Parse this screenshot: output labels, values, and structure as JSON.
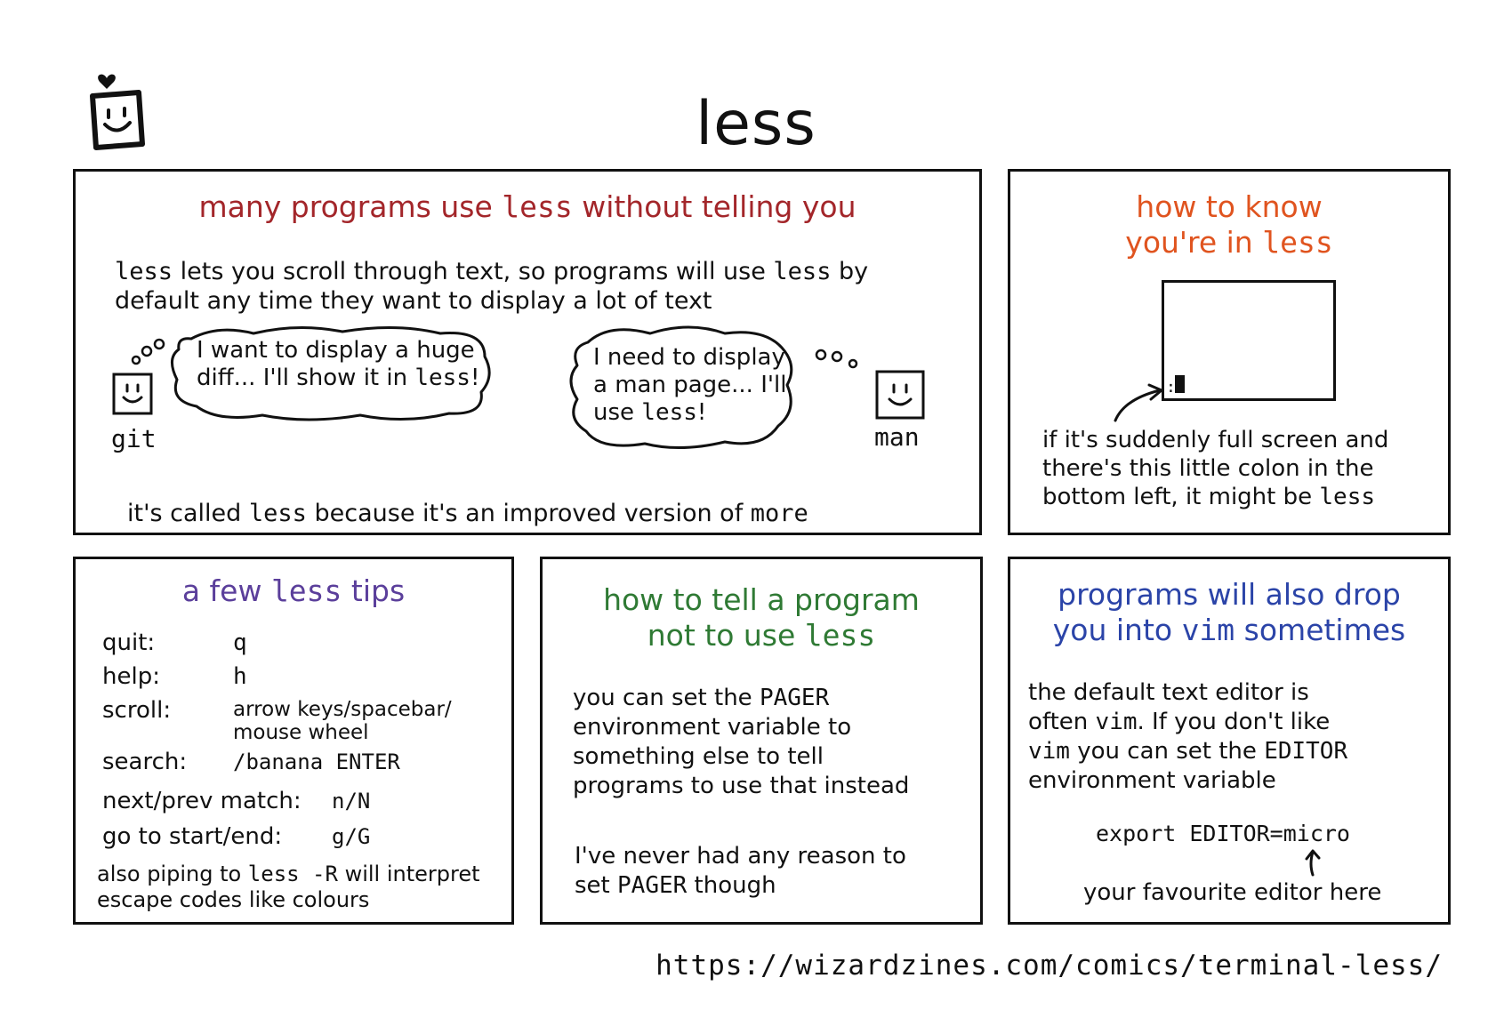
{
  "title": "less",
  "panel1": {
    "heading": {
      "part1": "many programs use ",
      "code": "less",
      "part2": " without telling you"
    },
    "line1": {
      "code1": "less",
      "text1": " lets you scroll through text, so programs will use ",
      "code2": "less",
      "text2": " by"
    },
    "line2": "default any time they want to display a lot of text",
    "git_bubble": {
      "line1": "I want to display a huge",
      "line2a": "diff... I'll show it in ",
      "line2code": "less",
      "line2b": "!"
    },
    "git_label": "git",
    "man_bubble": {
      "line1": "I need to display",
      "line2": "a man page... I'll",
      "line3a": "use ",
      "line3code": "less",
      "line3b": "!"
    },
    "man_label": "man",
    "footer": {
      "t1": "it's called ",
      "code1": "less",
      "t2": " because it's an improved version of ",
      "code2": "more"
    }
  },
  "panel2": {
    "heading1": "how to know",
    "heading2a": "you're in ",
    "heading2code": "less",
    "colon_prompt": ":",
    "line1": "if it's suddenly full screen and",
    "line2": "there's this little colon in the",
    "line3a": "bottom left, it might be ",
    "line3code": "less"
  },
  "panel3": {
    "heading": {
      "t1": "a few ",
      "code": "less",
      "t2": " tips"
    },
    "tips": [
      {
        "key": "quit:",
        "value": "q"
      },
      {
        "key": "help:",
        "value": "h"
      },
      {
        "key": "scroll:",
        "value": "arrow keys/spacebar/",
        "value2": "mouse wheel"
      },
      {
        "key": "search:",
        "value": "/banana ENTER"
      },
      {
        "key": "next/prev match:",
        "value": "n/N"
      },
      {
        "key": "go to start/end:",
        "value": "g/G"
      }
    ],
    "note": {
      "t1": "also piping to ",
      "code": "less -R",
      "t2": " will interpret",
      "line2": "escape codes like colours"
    }
  },
  "panel4": {
    "heading1": "how to tell a program",
    "heading2a": "not to use ",
    "heading2code": "less",
    "p1": {
      "l1a": "you can set the ",
      "l1code": "PAGER",
      "l2": "environment variable to",
      "l3": "something else to tell",
      "l4": "programs to use that instead"
    },
    "p2": {
      "l1": "I've never had any reason to",
      "l2a": "set ",
      "l2code": "PAGER",
      "l2b": " though"
    }
  },
  "panel5": {
    "heading1": "programs will also drop",
    "heading2a": "you into ",
    "heading2code": "vim",
    "heading2b": " sometimes",
    "l1": "the default text editor is",
    "l2a": "often ",
    "l2code": "vim",
    "l2b": ". If you don't like",
    "l3code1": "vim",
    "l3a": " you can set the ",
    "l3code2": "EDITOR",
    "l4": "environment variable",
    "command": "export EDITOR=micro",
    "annotation": "your favourite editor here"
  },
  "url": "https://wizardzines.com/comics/terminal-less/"
}
